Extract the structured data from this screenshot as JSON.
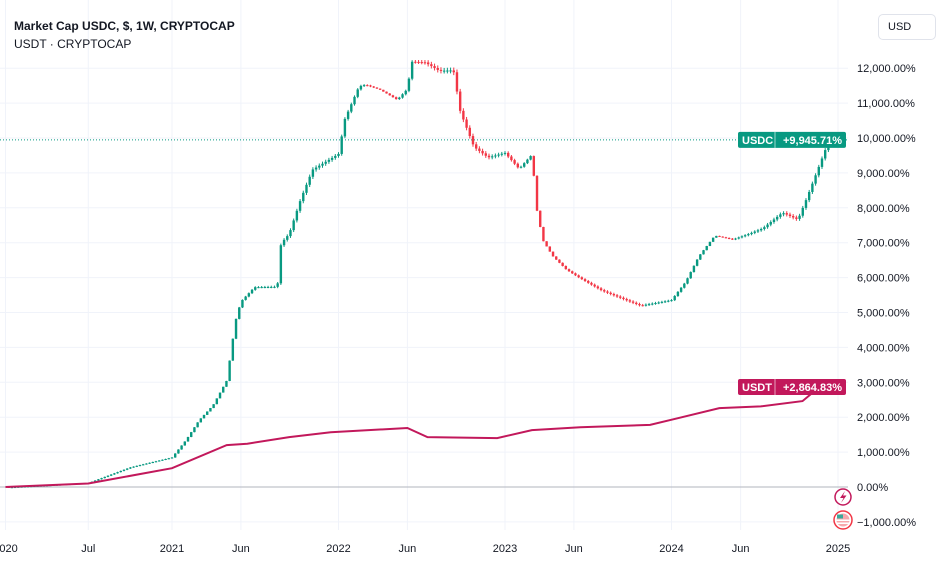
{
  "legend": {
    "title": "Market Cap USDC, $, 1W, CRYPTOCAP",
    "subtitle": "USDT · CRYPTOCAP"
  },
  "currency_button": "USD",
  "colors": {
    "up": "#089981",
    "down": "#f23645",
    "usdt": "#c2185b",
    "grid": "#f0f3fa"
  },
  "chart_data": {
    "type": "line",
    "title": "Market Cap USDC, $, 1W, CRYPTOCAP",
    "y_unit": "%",
    "ylim": [
      -1100,
      12500
    ],
    "y_ticks": [
      -1000,
      0,
      1000,
      2000,
      3000,
      4000,
      5000,
      6000,
      7000,
      8000,
      9000,
      10000,
      11000,
      12000
    ],
    "y_tick_labels": [
      "−1,000.00%",
      "0.00%",
      "1,000.00%",
      "2,000.00%",
      "3,000.00%",
      "4,000.00%",
      "5,000.00%",
      "6,000.00%",
      "7,000.00%",
      "8,000.00%",
      "9,000.00%",
      "10,000.00%",
      "11,000.00%",
      "12,000.00%"
    ],
    "x_ticks": [
      {
        "date": "2020-01-01",
        "label": "2020"
      },
      {
        "date": "2020-07-01",
        "label": "Jul"
      },
      {
        "date": "2021-01-01",
        "label": "2021"
      },
      {
        "date": "2021-06-01",
        "label": "Jun"
      },
      {
        "date": "2022-01-01",
        "label": "2022"
      },
      {
        "date": "2022-06-01",
        "label": "Jun"
      },
      {
        "date": "2023-01-01",
        "label": "2023"
      },
      {
        "date": "2023-06-01",
        "label": "Jun"
      },
      {
        "date": "2024-01-01",
        "label": "2024"
      },
      {
        "date": "2024-06-01",
        "label": "Jun"
      },
      {
        "date": "2025-01-01",
        "label": "2025"
      }
    ],
    "grid": true,
    "series": [
      {
        "name": "USDC",
        "style": "candles",
        "last_label": "+9,945.71%",
        "last_value": 9945.71,
        "points": [
          [
            "2020-01-01",
            0
          ],
          [
            "2020-07-01",
            100
          ],
          [
            "2020-10-01",
            540
          ],
          [
            "2021-01-01",
            830
          ],
          [
            "2021-02-01",
            1340
          ],
          [
            "2021-03-01",
            1900
          ],
          [
            "2021-04-01",
            2340
          ],
          [
            "2021-05-01",
            3060
          ],
          [
            "2021-05-20",
            4770
          ],
          [
            "2021-06-01",
            5340
          ],
          [
            "2021-07-01",
            5770
          ],
          [
            "2021-08-20",
            5800
          ],
          [
            "2021-08-28",
            7060
          ],
          [
            "2021-09-15",
            7340
          ],
          [
            "2021-10-10",
            8340
          ],
          [
            "2021-11-05",
            9200
          ],
          [
            "2022-01-01",
            9630
          ],
          [
            "2022-01-15",
            10630
          ],
          [
            "2022-02-15",
            11540
          ],
          [
            "2022-03-01",
            11570
          ],
          [
            "2022-04-01",
            11400
          ],
          [
            "2022-05-10",
            11060
          ],
          [
            "2022-06-01",
            11340
          ],
          [
            "2022-06-10",
            12110
          ],
          [
            "2022-07-10",
            12060
          ],
          [
            "2022-08-10",
            11800
          ],
          [
            "2022-09-10",
            11800
          ],
          [
            "2022-09-25",
            10630
          ],
          [
            "2022-10-25",
            9630
          ],
          [
            "2022-11-25",
            9340
          ],
          [
            "2023-01-01",
            9490
          ],
          [
            "2023-02-01",
            9060
          ],
          [
            "2023-03-01",
            9490
          ],
          [
            "2023-03-12",
            7910
          ],
          [
            "2023-03-25",
            7060
          ],
          [
            "2023-04-15",
            6630
          ],
          [
            "2023-05-15",
            6260
          ],
          [
            "2023-06-10",
            6060
          ],
          [
            "2023-08-01",
            5690
          ],
          [
            "2023-09-10",
            5490
          ],
          [
            "2023-10-25",
            5260
          ],
          [
            "2024-01-01",
            5400
          ],
          [
            "2024-02-01",
            5910
          ],
          [
            "2024-03-01",
            6630
          ],
          [
            "2024-04-05",
            7200
          ],
          [
            "2024-05-15",
            7060
          ],
          [
            "2024-06-20",
            7200
          ],
          [
            "2024-07-20",
            7340
          ],
          [
            "2024-09-01",
            7770
          ],
          [
            "2024-10-05",
            7570
          ],
          [
            "2024-10-25",
            8200
          ],
          [
            "2024-11-15",
            8910
          ],
          [
            "2024-12-10",
            9770
          ],
          [
            "2024-12-28",
            9945.71
          ]
        ]
      },
      {
        "name": "USDT",
        "style": "line",
        "last_label": "+2,864.83%",
        "last_value": 2864.83,
        "points": [
          [
            "2020-01-01",
            0
          ],
          [
            "2020-07-01",
            100
          ],
          [
            "2021-01-01",
            540
          ],
          [
            "2021-05-01",
            1200
          ],
          [
            "2021-06-15",
            1240
          ],
          [
            "2021-09-15",
            1430
          ],
          [
            "2021-12-15",
            1570
          ],
          [
            "2022-06-01",
            1690
          ],
          [
            "2022-07-15",
            1430
          ],
          [
            "2022-12-15",
            1400
          ],
          [
            "2023-03-01",
            1630
          ],
          [
            "2023-06-15",
            1710
          ],
          [
            "2023-11-15",
            1780
          ],
          [
            "2024-01-15",
            1970
          ],
          [
            "2024-04-15",
            2260
          ],
          [
            "2024-07-15",
            2310
          ],
          [
            "2024-10-15",
            2460
          ],
          [
            "2024-12-01",
            2970
          ],
          [
            "2024-12-28",
            2864.83
          ]
        ]
      }
    ],
    "annotations": [
      "lightning-event-icon",
      "us-flag-event-icon"
    ]
  }
}
